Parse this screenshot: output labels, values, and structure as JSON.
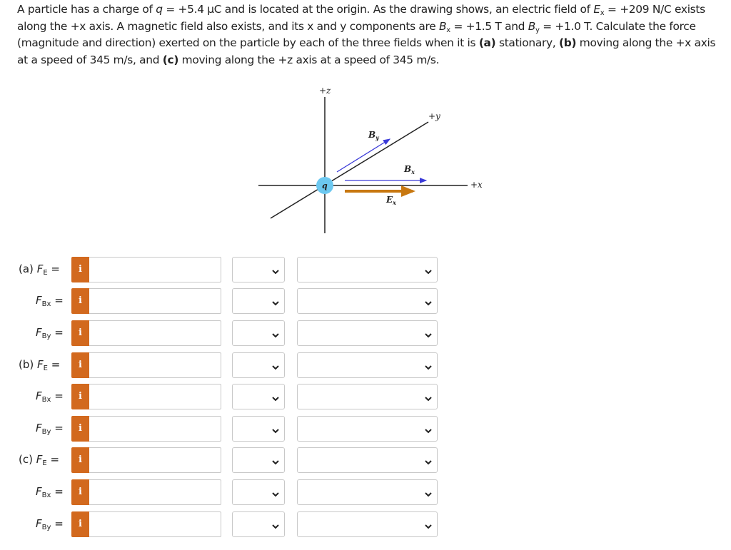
{
  "problem": {
    "p1": "A particle has a charge of ",
    "q_var": "q",
    "p2": " = +5.4 μC and is located at the origin. As the drawing shows, an electric field of ",
    "ex_var": "E",
    "ex_sub": "x",
    "p3": " = +209 N/C exists along the +x axis. A magnetic field also exists, and its x and y components are ",
    "bx_var": "B",
    "bx_sub": "x",
    "p4": " = +1.5 T and ",
    "by_var": "B",
    "by_sub": "y",
    "p5": " = +1.0 T. Calculate the force (magnitude and direction) exerted on the particle by each of the three fields when it is ",
    "a": "(a)",
    "p6": " stationary, ",
    "b": "(b)",
    "p7": " moving along the +x axis at a speed of 345 m/s, and ",
    "c": "(c)",
    "p8": " moving along the +z axis at a speed of 345 m/s."
  },
  "diagram": {
    "z_label": "+z",
    "y_label": "+y",
    "x_label": "+x",
    "charge_label": "q",
    "by_label": "B",
    "by_sub": "y",
    "bx_label": "B",
    "bx_sub": "x",
    "ex_label": "E",
    "ex_sub": "x",
    "colors": {
      "axis": "#222222",
      "b_field": "#3a3ad8",
      "e_field": "#c87810",
      "charge": "#6cc8f0"
    }
  },
  "rows": [
    {
      "part": "(a)",
      "var": "F",
      "sub": "E"
    },
    {
      "part": "",
      "var": "F",
      "sub": "Bx"
    },
    {
      "part": "",
      "var": "F",
      "sub": "By"
    },
    {
      "part": "(b)",
      "var": "F",
      "sub": "E"
    },
    {
      "part": "",
      "var": "F",
      "sub": "Bx"
    },
    {
      "part": "",
      "var": "F",
      "sub": "By"
    },
    {
      "part": "(c)",
      "var": "F",
      "sub": "E"
    },
    {
      "part": "",
      "var": "F",
      "sub": "Bx"
    },
    {
      "part": "",
      "var": "F",
      "sub": "By"
    }
  ],
  "info_label": "i",
  "eq": " =",
  "colors": {
    "info_button": "#d2691e"
  }
}
